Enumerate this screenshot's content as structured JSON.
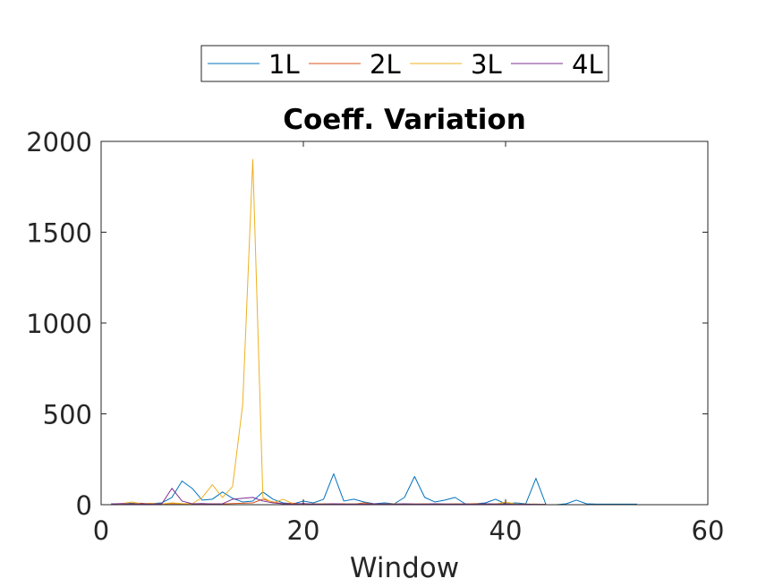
{
  "chart_data": {
    "type": "line",
    "title": "Coeff. Variation",
    "xlabel": "Window",
    "ylabel": "",
    "xlim": [
      0,
      60
    ],
    "ylim": [
      0,
      2000
    ],
    "xticks": [
      0,
      20,
      40,
      60
    ],
    "yticks": [
      0,
      500,
      1000,
      1500,
      2000
    ],
    "xtick_labels": [
      "0",
      "20",
      "40",
      "60"
    ],
    "ytick_labels": [
      "0",
      "500",
      "1000",
      "1500",
      "2000"
    ],
    "grid": false,
    "legend_position": "top-center, outside, horizontal",
    "series": [
      {
        "name": "1L",
        "color": "#0072BD",
        "points": [
          [
            1,
            5
          ],
          [
            2,
            3
          ],
          [
            3,
            8
          ],
          [
            4,
            4
          ],
          [
            5,
            6
          ],
          [
            6,
            10
          ],
          [
            7,
            40
          ],
          [
            8,
            130
          ],
          [
            9,
            90
          ],
          [
            10,
            25
          ],
          [
            11,
            30
          ],
          [
            12,
            70
          ],
          [
            13,
            35
          ],
          [
            14,
            15
          ],
          [
            15,
            20
          ],
          [
            16,
            70
          ],
          [
            17,
            30
          ],
          [
            18,
            10
          ],
          [
            19,
            5
          ],
          [
            20,
            20
          ],
          [
            21,
            10
          ],
          [
            22,
            30
          ],
          [
            23,
            170
          ],
          [
            24,
            20
          ],
          [
            25,
            30
          ],
          [
            26,
            15
          ],
          [
            27,
            5
          ],
          [
            28,
            10
          ],
          [
            29,
            5
          ],
          [
            30,
            40
          ],
          [
            31,
            155
          ],
          [
            32,
            40
          ],
          [
            33,
            15
          ],
          [
            34,
            25
          ],
          [
            35,
            40
          ],
          [
            36,
            5
          ],
          [
            37,
            5
          ],
          [
            38,
            10
          ],
          [
            39,
            30
          ],
          [
            40,
            5
          ],
          [
            41,
            10
          ],
          [
            42,
            5
          ],
          [
            43,
            145
          ],
          [
            44,
            0
          ],
          [
            45,
            0
          ],
          [
            46,
            5
          ],
          [
            47,
            25
          ],
          [
            48,
            5
          ],
          [
            49,
            3
          ],
          [
            50,
            3
          ],
          [
            51,
            3
          ],
          [
            52,
            3
          ],
          [
            53,
            3
          ]
        ]
      },
      {
        "name": "2L",
        "color": "#D95319",
        "points": [
          [
            1,
            3
          ],
          [
            2,
            2
          ],
          [
            3,
            5
          ],
          [
            4,
            8
          ],
          [
            5,
            3
          ],
          [
            6,
            4
          ],
          [
            7,
            6
          ],
          [
            8,
            5
          ],
          [
            9,
            4
          ],
          [
            10,
            3
          ],
          [
            11,
            5
          ],
          [
            12,
            4
          ],
          [
            13,
            6
          ],
          [
            14,
            8
          ],
          [
            15,
            10
          ],
          [
            16,
            30
          ],
          [
            17,
            15
          ],
          [
            18,
            5
          ],
          [
            19,
            8
          ],
          [
            20,
            4
          ],
          [
            21,
            5
          ],
          [
            22,
            3
          ],
          [
            23,
            4
          ],
          [
            24,
            5
          ],
          [
            25,
            3
          ],
          [
            26,
            10
          ],
          [
            27,
            4
          ],
          [
            28,
            3
          ],
          [
            29,
            5
          ],
          [
            30,
            4
          ],
          [
            31,
            3
          ],
          [
            32,
            5
          ],
          [
            33,
            4
          ],
          [
            34,
            3
          ],
          [
            35,
            5
          ],
          [
            36,
            4
          ],
          [
            37,
            6
          ],
          [
            38,
            3
          ],
          [
            39,
            4
          ],
          [
            40,
            5
          ],
          [
            41,
            3
          ],
          [
            42,
            2
          ],
          [
            43,
            3
          ],
          [
            44,
            2
          ]
        ]
      },
      {
        "name": "3L",
        "color": "#EDB120",
        "points": [
          [
            1,
            2
          ],
          [
            2,
            5
          ],
          [
            3,
            15
          ],
          [
            4,
            5
          ],
          [
            5,
            8
          ],
          [
            6,
            4
          ],
          [
            7,
            10
          ],
          [
            8,
            6
          ],
          [
            9,
            5
          ],
          [
            10,
            40
          ],
          [
            11,
            110
          ],
          [
            12,
            40
          ],
          [
            13,
            100
          ],
          [
            14,
            550
          ],
          [
            15,
            1900
          ],
          [
            16,
            40
          ],
          [
            17,
            10
          ],
          [
            18,
            30
          ],
          [
            19,
            5
          ],
          [
            20,
            4
          ],
          [
            21,
            3
          ],
          [
            22,
            5
          ],
          [
            23,
            4
          ],
          [
            24,
            3
          ],
          [
            25,
            5
          ],
          [
            26,
            3
          ],
          [
            27,
            4
          ],
          [
            28,
            3
          ],
          [
            29,
            5
          ],
          [
            30,
            4
          ],
          [
            31,
            3
          ],
          [
            32,
            4
          ],
          [
            33,
            5
          ],
          [
            34,
            3
          ],
          [
            35,
            4
          ],
          [
            36,
            3
          ],
          [
            37,
            5
          ],
          [
            38,
            4
          ],
          [
            39,
            3
          ],
          [
            40,
            15
          ],
          [
            41,
            3
          ],
          [
            42,
            4
          ],
          [
            43,
            3
          ],
          [
            44,
            2
          ]
        ]
      },
      {
        "name": "4L",
        "color": "#7E2F8E",
        "points": [
          [
            1,
            4
          ],
          [
            2,
            6
          ],
          [
            3,
            3
          ],
          [
            4,
            5
          ],
          [
            5,
            4
          ],
          [
            6,
            5
          ],
          [
            7,
            90
          ],
          [
            8,
            20
          ],
          [
            9,
            5
          ],
          [
            10,
            6
          ],
          [
            11,
            4
          ],
          [
            12,
            5
          ],
          [
            13,
            30
          ],
          [
            14,
            35
          ],
          [
            15,
            40
          ],
          [
            16,
            20
          ],
          [
            17,
            10
          ],
          [
            18,
            5
          ],
          [
            19,
            4
          ],
          [
            20,
            6
          ],
          [
            21,
            3
          ],
          [
            22,
            4
          ],
          [
            23,
            5
          ],
          [
            24,
            3
          ],
          [
            25,
            4
          ],
          [
            26,
            3
          ],
          [
            27,
            5
          ],
          [
            28,
            4
          ],
          [
            29,
            3
          ],
          [
            30,
            5
          ],
          [
            31,
            4
          ],
          [
            32,
            3
          ],
          [
            33,
            5
          ],
          [
            34,
            4
          ],
          [
            35,
            3
          ],
          [
            36,
            4
          ],
          [
            37,
            3
          ],
          [
            38,
            5
          ],
          [
            39,
            4
          ],
          [
            40,
            3
          ],
          [
            41,
            2
          ],
          [
            42,
            3
          ],
          [
            43,
            2
          ],
          [
            44,
            2
          ]
        ]
      }
    ]
  }
}
